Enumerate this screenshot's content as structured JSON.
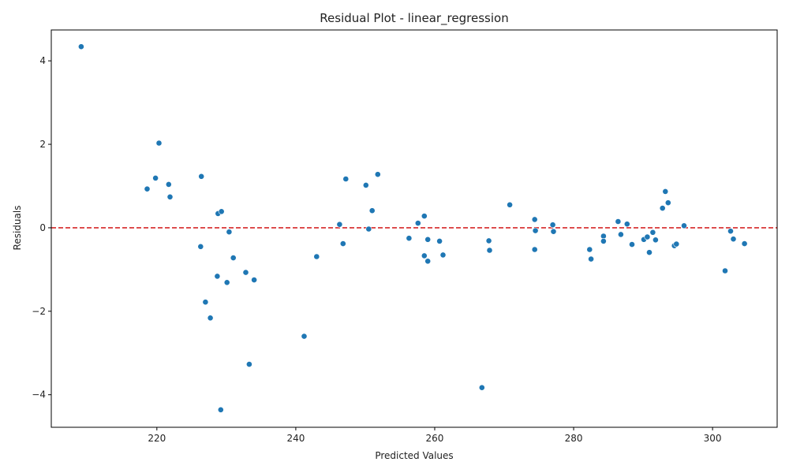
{
  "chart_data": {
    "type": "scatter",
    "title": "Residual Plot - linear_regression",
    "xlabel": "Predicted Values",
    "ylabel": "Residuals",
    "xlim": [
      204.8,
      309.3
    ],
    "ylim": [
      -4.78,
      4.74
    ],
    "xticks": [
      220,
      240,
      260,
      280,
      300
    ],
    "yticks": [
      -4,
      -2,
      0,
      2,
      4
    ],
    "ytick_labels": [
      "−4",
      "−2",
      "0",
      "2",
      "4"
    ],
    "grid": false,
    "marker_color": "#1f77b4",
    "reference_line": {
      "y": 0,
      "color": "#d62728",
      "style": "dashed"
    },
    "points": [
      [
        209.1,
        4.34
      ],
      [
        220.3,
        2.03
      ],
      [
        219.8,
        1.19
      ],
      [
        218.6,
        0.93
      ],
      [
        221.7,
        1.04
      ],
      [
        221.9,
        0.74
      ],
      [
        226.4,
        1.23
      ],
      [
        226.3,
        -0.45
      ],
      [
        227.0,
        -1.78
      ],
      [
        227.7,
        -2.16
      ],
      [
        228.7,
        -1.16
      ],
      [
        228.8,
        0.34
      ],
      [
        229.3,
        0.39
      ],
      [
        230.4,
        -0.1
      ],
      [
        230.1,
        -1.31
      ],
      [
        231.0,
        -0.72
      ],
      [
        232.8,
        -1.07
      ],
      [
        234.0,
        -1.25
      ],
      [
        233.3,
        -3.27
      ],
      [
        229.2,
        -4.36
      ],
      [
        241.2,
        -2.6
      ],
      [
        243.0,
        -0.69
      ],
      [
        246.3,
        0.08
      ],
      [
        246.8,
        -0.38
      ],
      [
        247.2,
        1.17
      ],
      [
        250.1,
        1.02
      ],
      [
        250.5,
        -0.03
      ],
      [
        251.0,
        0.41
      ],
      [
        251.8,
        1.28
      ],
      [
        256.3,
        -0.25
      ],
      [
        257.6,
        0.11
      ],
      [
        258.5,
        0.28
      ],
      [
        258.5,
        -0.67
      ],
      [
        259.0,
        -0.28
      ],
      [
        259.0,
        -0.8
      ],
      [
        260.7,
        -0.32
      ],
      [
        261.2,
        -0.65
      ],
      [
        266.8,
        -3.83
      ],
      [
        267.8,
        -0.31
      ],
      [
        267.9,
        -0.54
      ],
      [
        270.8,
        0.55
      ],
      [
        274.4,
        0.2
      ],
      [
        274.5,
        -0.07
      ],
      [
        274.4,
        -0.52
      ],
      [
        277.0,
        0.07
      ],
      [
        277.1,
        -0.09
      ],
      [
        282.3,
        -0.52
      ],
      [
        282.5,
        -0.75
      ],
      [
        284.3,
        -0.2
      ],
      [
        284.3,
        -0.32
      ],
      [
        286.4,
        0.15
      ],
      [
        286.8,
        -0.16
      ],
      [
        287.7,
        0.09
      ],
      [
        288.4,
        -0.4
      ],
      [
        290.1,
        -0.28
      ],
      [
        290.6,
        -0.22
      ],
      [
        290.9,
        -0.59
      ],
      [
        291.4,
        -0.11
      ],
      [
        291.8,
        -0.29
      ],
      [
        292.8,
        0.47
      ],
      [
        293.2,
        0.87
      ],
      [
        293.6,
        0.6
      ],
      [
        294.5,
        -0.43
      ],
      [
        294.8,
        -0.39
      ],
      [
        295.9,
        0.05
      ],
      [
        301.8,
        -1.03
      ],
      [
        302.6,
        -0.08
      ],
      [
        303.0,
        -0.27
      ],
      [
        304.6,
        -0.38
      ]
    ]
  }
}
